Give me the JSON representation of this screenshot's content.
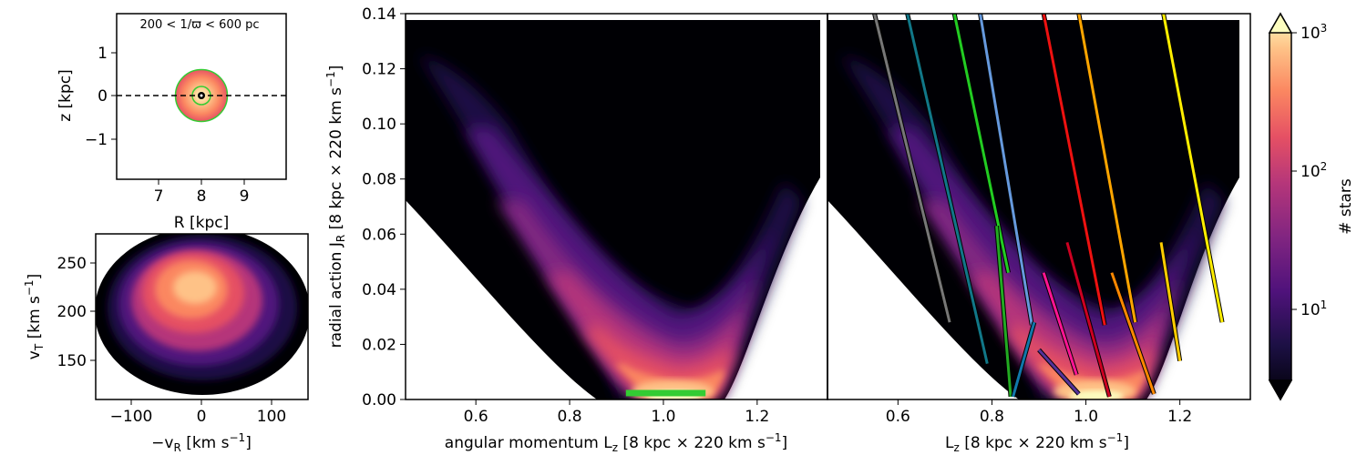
{
  "colors": {
    "cmap": [
      "#000004",
      "#1c1044",
      "#4f127b",
      "#812581",
      "#b5367a",
      "#e55064",
      "#fb8761",
      "#fec287",
      "#fcfdbf"
    ],
    "background": "#ffffff",
    "bar_highlight": "#33cc33",
    "zero_line": "#000000"
  },
  "chart_data": [
    {
      "id": "position_inset",
      "type": "scatter",
      "title": "200 < 1/ϖ < 600 pc",
      "xlabel": "R [kpc]",
      "ylabel": "z [kpc]",
      "xlim": [
        6,
        10
      ],
      "ylim": [
        -1.9,
        1.9
      ],
      "xticks": [
        "7",
        "8",
        "9"
      ],
      "xtick_values": [
        7,
        8,
        9
      ],
      "yticks": [
        "−1",
        "0",
        "1"
      ],
      "ytick_values": [
        -1,
        0,
        1
      ],
      "sun": [
        8,
        0
      ],
      "distance_rings_kpc": [
        0.2,
        0.6
      ],
      "grid": false
    },
    {
      "id": "velocity_inset",
      "type": "heatmap",
      "xlabel": "−v_R [km s⁻¹]",
      "ylabel": "v_T [km s⁻¹]",
      "xlim": [
        -150,
        150
      ],
      "ylim": [
        110,
        280
      ],
      "xticks": [
        "−100",
        "0",
        "100"
      ],
      "xtick_values": [
        -100,
        0,
        100
      ],
      "yticks": [
        "150",
        "200",
        "250"
      ],
      "ytick_values": [
        150,
        200,
        250
      ],
      "peak": [
        0,
        220
      ],
      "grid": false
    },
    {
      "id": "action_left",
      "type": "heatmap",
      "xlabel": "angular momentum L_z [8 kpc × 220 km s⁻¹]",
      "ylabel": "radial action J_R [8 kpc × 220 km s⁻¹]",
      "xlim": [
        0.45,
        1.35
      ],
      "ylim": [
        0,
        0.14
      ],
      "xticks": [
        "0.6",
        "0.8",
        "1.0",
        "1.2"
      ],
      "xtick_values": [
        0.6,
        0.8,
        1.0,
        1.2
      ],
      "yticks": [
        "0.00",
        "0.02",
        "0.04",
        "0.06",
        "0.08",
        "0.10",
        "0.12",
        "0.14"
      ],
      "ytick_values": [
        0,
        0.02,
        0.04,
        0.06,
        0.08,
        0.1,
        0.12,
        0.14
      ],
      "highlight_bar": {
        "x": [
          0.92,
          1.09
        ],
        "y": 0.0015,
        "color": "#33cc33"
      },
      "grid": false
    },
    {
      "id": "action_right",
      "type": "heatmap",
      "xlabel": "L_z [8 kpc × 220 km s⁻¹]",
      "xlim": [
        0.45,
        1.35
      ],
      "ylim": [
        0,
        0.14
      ],
      "xticks": [
        "0.6",
        "0.8",
        "1.0",
        "1.2"
      ],
      "xtick_values": [
        0.6,
        0.8,
        1.0,
        1.2
      ],
      "series": [
        {
          "color": "#777777",
          "x": [
            0.55,
            0.71
          ],
          "y": [
            0.14,
            0.028
          ]
        },
        {
          "color": "#117788",
          "x": [
            0.62,
            0.79
          ],
          "y": [
            0.14,
            0.013
          ]
        },
        {
          "color": "#22cc22",
          "x": [
            0.72,
            0.835
          ],
          "y": [
            0.14,
            0.046
          ]
        },
        {
          "color": "#6699dd",
          "x": [
            0.775,
            0.885
          ],
          "y": [
            0.14,
            0.027
          ]
        },
        {
          "color": "#ee1111",
          "x": [
            0.91,
            1.04
          ],
          "y": [
            0.14,
            0.027
          ]
        },
        {
          "color": "#ffa500",
          "x": [
            0.985,
            1.105
          ],
          "y": [
            0.14,
            0.028
          ]
        },
        {
          "color": "#ffee00",
          "x": [
            1.165,
            1.29
          ],
          "y": [
            0.14,
            0.028
          ]
        },
        {
          "color": "#22aa22",
          "x": [
            0.81,
            0.84
          ],
          "y": [
            0.063,
            0.001
          ]
        },
        {
          "color": "#1177aa",
          "x": [
            0.845,
            0.89
          ],
          "y": [
            0.001,
            0.028
          ]
        },
        {
          "color": "#ff1493",
          "x": [
            0.91,
            0.98
          ],
          "y": [
            0.046,
            0.009
          ]
        },
        {
          "color": "#553399",
          "x": [
            0.9,
            0.985
          ],
          "y": [
            0.018,
            0.002
          ]
        },
        {
          "color": "#cc0022",
          "x": [
            0.96,
            1.05
          ],
          "y": [
            0.057,
            0.001
          ]
        },
        {
          "color": "#ff8800",
          "x": [
            1.055,
            1.145
          ],
          "y": [
            0.046,
            0.002
          ]
        },
        {
          "color": "#ffcc00",
          "x": [
            1.16,
            1.2
          ],
          "y": [
            0.057,
            0.014
          ]
        }
      ],
      "grid": false
    },
    {
      "id": "colorbar",
      "type": "heatmap",
      "label": "# stars",
      "scale": "log",
      "range": [
        3,
        1000
      ],
      "ticks": [
        "10¹",
        "10²",
        "10³"
      ],
      "tick_values": [
        10,
        100,
        1000
      ]
    }
  ]
}
